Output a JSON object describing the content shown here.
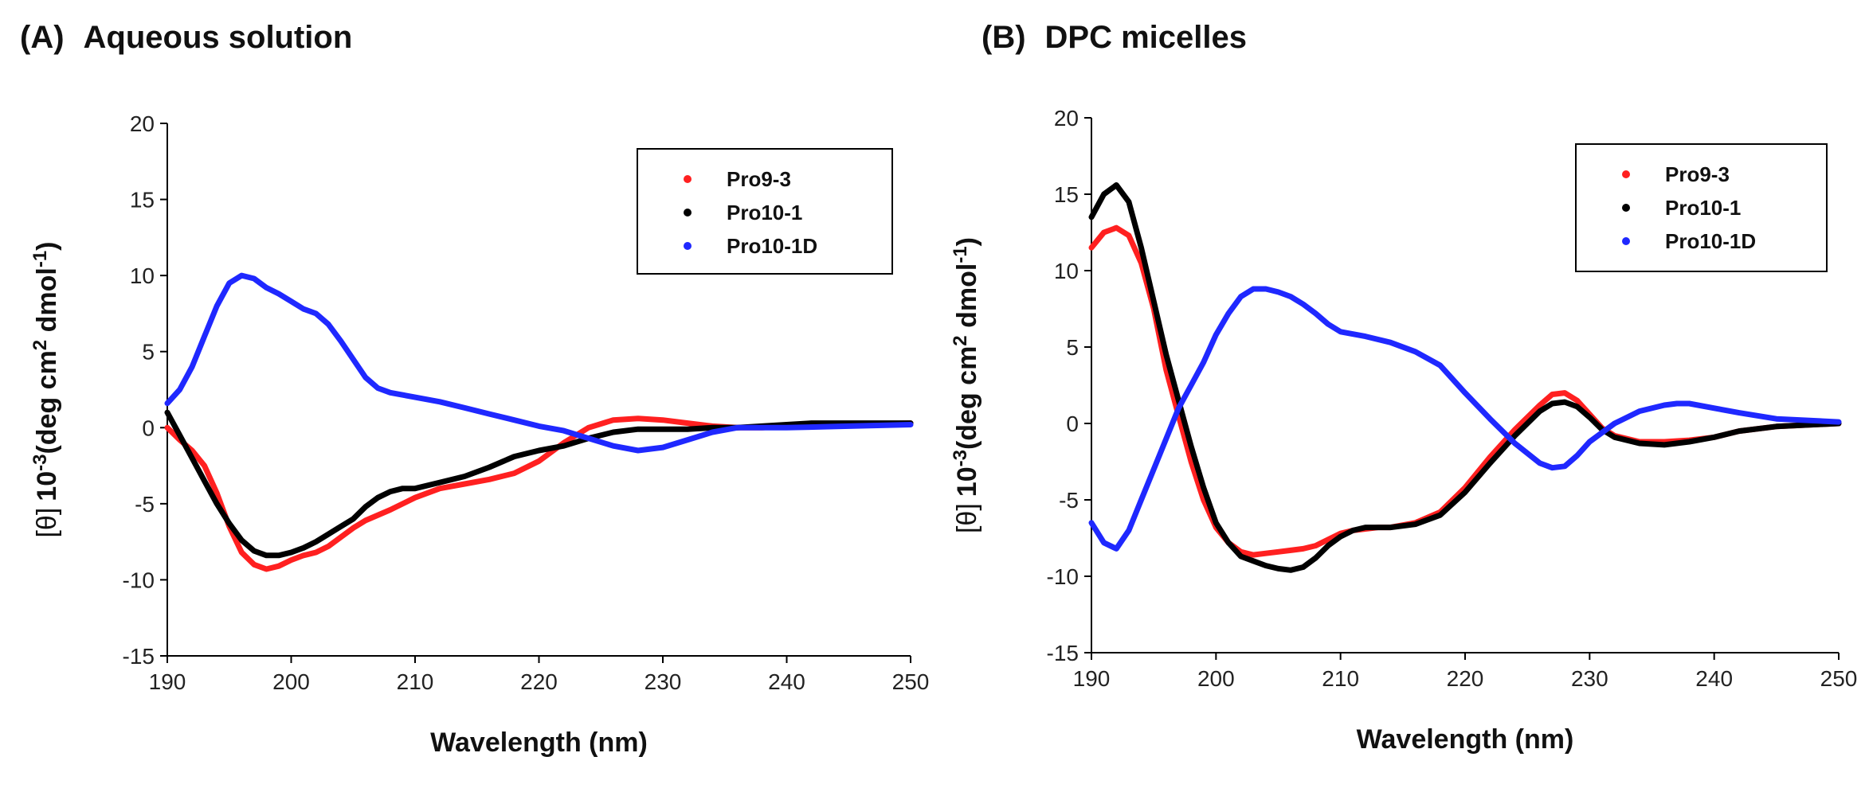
{
  "chart_data": [
    {
      "type": "line",
      "panel_label": "(A)",
      "title": "Aqueous solution",
      "xlabel": "Wavelength (nm)",
      "ylabel_prefix": "[θ]",
      "ylabel_main": "10",
      "ylabel_exp1": "-3",
      "ylabel_mid": "(deg cm",
      "ylabel_exp2": "2",
      "ylabel_tail": " dmol",
      "ylabel_exp3": "-1",
      "ylabel_close": ")",
      "xlim": [
        190,
        250
      ],
      "ylim": [
        -15,
        20
      ],
      "xticks": [
        190,
        200,
        210,
        220,
        230,
        240,
        250
      ],
      "yticks": [
        -15,
        -10,
        -5,
        0,
        5,
        10,
        15,
        20
      ],
      "legend_position": "top-right",
      "grid": false,
      "series": [
        {
          "name": "Pro9-3",
          "color": "#ff2020",
          "x": [
            190,
            191,
            192,
            193,
            194,
            195,
            196,
            197,
            198,
            199,
            200,
            201,
            202,
            203,
            204,
            205,
            206,
            208,
            210,
            212,
            214,
            216,
            218,
            220,
            222,
            224,
            226,
            228,
            230,
            232,
            234,
            236,
            238,
            240,
            245,
            250
          ],
          "y": [
            0.0,
            -0.8,
            -1.5,
            -2.5,
            -4.3,
            -6.5,
            -8.2,
            -9.0,
            -9.3,
            -9.1,
            -8.7,
            -8.4,
            -8.2,
            -7.8,
            -7.2,
            -6.6,
            -6.1,
            -5.4,
            -4.6,
            -4.0,
            -3.7,
            -3.4,
            -3.0,
            -2.2,
            -1.0,
            0.0,
            0.5,
            0.6,
            0.5,
            0.3,
            0.1,
            0.0,
            0.0,
            0.1,
            0.2,
            0.3
          ]
        },
        {
          "name": "Pro10-1",
          "color": "#000000",
          "x": [
            190,
            191,
            192,
            193,
            194,
            195,
            196,
            197,
            198,
            199,
            200,
            201,
            202,
            203,
            204,
            205,
            206,
            207,
            208,
            209,
            210,
            212,
            214,
            216,
            218,
            220,
            222,
            224,
            226,
            228,
            230,
            232,
            234,
            236,
            238,
            240,
            242,
            245,
            250
          ],
          "y": [
            1.0,
            -0.5,
            -2.0,
            -3.5,
            -5.0,
            -6.3,
            -7.4,
            -8.1,
            -8.4,
            -8.4,
            -8.2,
            -7.9,
            -7.5,
            -7.0,
            -6.5,
            -6.0,
            -5.2,
            -4.6,
            -4.2,
            -4.0,
            -4.0,
            -3.6,
            -3.2,
            -2.6,
            -1.9,
            -1.5,
            -1.2,
            -0.7,
            -0.3,
            -0.1,
            -0.1,
            -0.1,
            0.0,
            0.0,
            0.1,
            0.2,
            0.3,
            0.3,
            0.3
          ]
        },
        {
          "name": "Pro10-1D",
          "color": "#1f28ff",
          "x": [
            190,
            191,
            192,
            193,
            194,
            195,
            196,
            197,
            198,
            199,
            200,
            201,
            202,
            203,
            204,
            205,
            206,
            207,
            208,
            210,
            212,
            214,
            216,
            218,
            220,
            222,
            224,
            226,
            228,
            230,
            232,
            234,
            236,
            238,
            240,
            245,
            250
          ],
          "y": [
            1.6,
            2.5,
            4.0,
            6.0,
            8.0,
            9.5,
            10.0,
            9.8,
            9.2,
            8.8,
            8.3,
            7.8,
            7.5,
            6.8,
            5.7,
            4.5,
            3.3,
            2.6,
            2.3,
            2.0,
            1.7,
            1.3,
            0.9,
            0.5,
            0.1,
            -0.2,
            -0.7,
            -1.2,
            -1.5,
            -1.3,
            -0.8,
            -0.3,
            0.0,
            0.0,
            0.0,
            0.1,
            0.2
          ]
        }
      ]
    },
    {
      "type": "line",
      "panel_label": "(B)",
      "title": "DPC micelles",
      "xlabel": "Wavelength (nm)",
      "ylabel_prefix": "[θ]",
      "ylabel_main": "10",
      "ylabel_exp1": "-3",
      "ylabel_mid": "(deg cm",
      "ylabel_exp2": "2",
      "ylabel_tail": " dmol",
      "ylabel_exp3": "-1",
      "ylabel_close": ")",
      "xlim": [
        190,
        250
      ],
      "ylim": [
        -15,
        20
      ],
      "xticks": [
        190,
        200,
        210,
        220,
        230,
        240,
        250
      ],
      "yticks": [
        -15,
        -10,
        -5,
        0,
        5,
        10,
        15,
        20
      ],
      "legend_position": "top-right",
      "grid": false,
      "series": [
        {
          "name": "Pro9-3",
          "color": "#ff2020",
          "x": [
            190,
            191,
            192,
            193,
            194,
            195,
            196,
            197,
            198,
            199,
            200,
            201,
            202,
            203,
            204,
            205,
            206,
            207,
            208,
            209,
            210,
            211,
            212,
            213,
            214,
            216,
            218,
            220,
            222,
            224,
            226,
            227,
            228,
            229,
            230,
            231,
            232,
            234,
            236,
            238,
            240,
            242,
            245,
            250
          ],
          "y": [
            11.5,
            12.5,
            12.8,
            12.3,
            10.5,
            7.5,
            3.5,
            0.5,
            -2.5,
            -5.0,
            -6.8,
            -7.8,
            -8.4,
            -8.6,
            -8.5,
            -8.4,
            -8.3,
            -8.2,
            -8.0,
            -7.6,
            -7.2,
            -7.0,
            -6.9,
            -6.8,
            -6.8,
            -6.5,
            -5.8,
            -4.2,
            -2.2,
            -0.4,
            1.2,
            1.9,
            2.0,
            1.5,
            0.6,
            -0.3,
            -0.8,
            -1.2,
            -1.2,
            -1.1,
            -0.9,
            -0.5,
            -0.2,
            0.0
          ]
        },
        {
          "name": "Pro10-1",
          "color": "#000000",
          "x": [
            190,
            191,
            192,
            193,
            194,
            195,
            196,
            197,
            198,
            199,
            200,
            201,
            202,
            203,
            204,
            205,
            206,
            207,
            208,
            209,
            210,
            211,
            212,
            213,
            214,
            216,
            218,
            220,
            222,
            224,
            226,
            227,
            228,
            229,
            230,
            231,
            232,
            234,
            236,
            238,
            240,
            242,
            245,
            250
          ],
          "y": [
            13.5,
            15.0,
            15.6,
            14.5,
            11.5,
            8.0,
            4.5,
            1.5,
            -1.5,
            -4.2,
            -6.5,
            -7.8,
            -8.7,
            -9.0,
            -9.3,
            -9.5,
            -9.6,
            -9.4,
            -8.8,
            -8.0,
            -7.4,
            -7.0,
            -6.8,
            -6.8,
            -6.8,
            -6.6,
            -6.0,
            -4.5,
            -2.6,
            -0.8,
            0.8,
            1.3,
            1.4,
            1.1,
            0.4,
            -0.4,
            -0.9,
            -1.3,
            -1.4,
            -1.2,
            -0.9,
            -0.5,
            -0.2,
            0.0
          ]
        },
        {
          "name": "Pro10-1D",
          "color": "#1f28ff",
          "x": [
            190,
            191,
            192,
            193,
            194,
            195,
            196,
            197,
            198,
            199,
            200,
            201,
            202,
            203,
            204,
            205,
            206,
            207,
            208,
            209,
            210,
            212,
            214,
            216,
            218,
            220,
            222,
            224,
            226,
            227,
            228,
            229,
            230,
            232,
            234,
            236,
            237,
            238,
            240,
            242,
            245,
            250
          ],
          "y": [
            -6.5,
            -7.8,
            -8.2,
            -7.0,
            -5.0,
            -3.0,
            -1.0,
            1.0,
            2.5,
            4.0,
            5.8,
            7.2,
            8.3,
            8.8,
            8.8,
            8.6,
            8.3,
            7.8,
            7.2,
            6.5,
            6.0,
            5.7,
            5.3,
            4.7,
            3.8,
            2.0,
            0.3,
            -1.3,
            -2.6,
            -2.9,
            -2.8,
            -2.1,
            -1.2,
            0.0,
            0.8,
            1.2,
            1.3,
            1.3,
            1.0,
            0.7,
            0.3,
            0.1
          ]
        }
      ]
    }
  ]
}
